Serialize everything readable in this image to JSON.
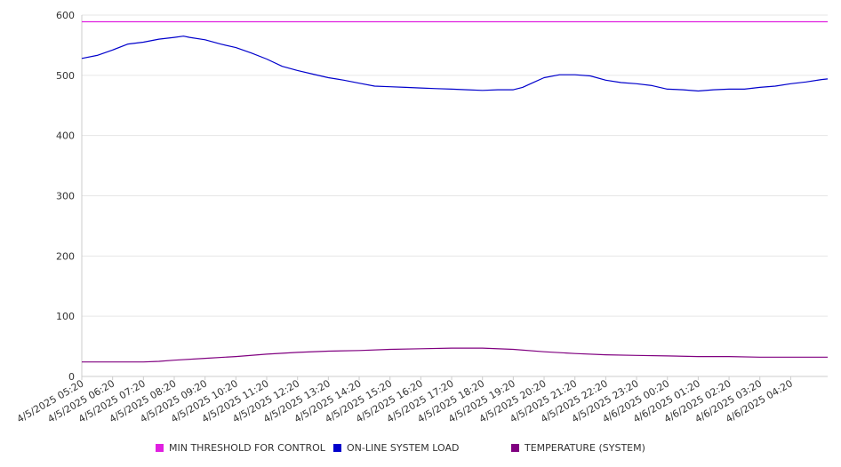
{
  "chart_data": {
    "type": "line",
    "ylim": [
      0,
      600
    ],
    "yticks": [
      0,
      100,
      200,
      300,
      400,
      500,
      600
    ],
    "x_tick_labels": [
      "4/5/2025 05:20",
      "4/5/2025 06:20",
      "4/5/2025 07:20",
      "4/5/2025 08:20",
      "4/5/2025 09:20",
      "4/5/2025 10:20",
      "4/5/2025 11:20",
      "4/5/2025 12:20",
      "4/5/2025 13:20",
      "4/5/2025 14:20",
      "4/5/2025 15:20",
      "4/5/2025 16:20",
      "4/5/2025 17:20",
      "4/5/2025 18:20",
      "4/5/2025 19:20",
      "4/5/2025 20:20",
      "4/5/2025 21:20",
      "4/5/2025 22:20",
      "4/5/2025 23:20",
      "4/6/2025 00:20",
      "4/6/2025 01:20",
      "4/6/2025 02:20",
      "4/6/2025 03:20",
      "4/6/2025 04:20"
    ],
    "grid": true,
    "legend_position": "bottom",
    "series": [
      {
        "name": "MIN THRESHOLD FOR CONTROL",
        "color": "#e020e0",
        "x": [
          0,
          24.2
        ],
        "values": [
          589,
          589
        ]
      },
      {
        "name": "ON-LINE SYSTEM LOAD",
        "color": "#0000cc",
        "x": [
          0,
          0.5,
          1,
          1.5,
          2,
          2.5,
          3,
          3.3,
          3.5,
          4,
          4.5,
          5,
          5.5,
          6,
          6.5,
          7,
          7.5,
          8,
          8.5,
          9,
          9.5,
          10,
          10.5,
          11,
          11.5,
          12,
          12.5,
          13,
          13.5,
          14,
          14.3,
          14.6,
          15,
          15.5,
          16,
          16.5,
          17,
          17.5,
          18,
          18.5,
          19,
          19.5,
          20,
          20.5,
          21,
          21.5,
          22,
          22.5,
          23,
          23.5,
          24,
          24.2
        ],
        "values": [
          528,
          533,
          542,
          552,
          555,
          560,
          563,
          565,
          563,
          559,
          552,
          546,
          537,
          527,
          515,
          508,
          502,
          496,
          492,
          487,
          482,
          481,
          480,
          479,
          478,
          477,
          476,
          475,
          476,
          476,
          480,
          487,
          496,
          501,
          501,
          499,
          492,
          488,
          486,
          483,
          477,
          476,
          474,
          476,
          477,
          477,
          480,
          482,
          486,
          489,
          493,
          494
        ]
      },
      {
        "name": "TEMPERATURE (SYSTEM)",
        "color": "#800080",
        "x": [
          0,
          1,
          2,
          2.5,
          3,
          4,
          5,
          6,
          7,
          8,
          9,
          10,
          11,
          12,
          13,
          14,
          15,
          16,
          17,
          18,
          19,
          20,
          21,
          22,
          23,
          24,
          24.2
        ],
        "values": [
          24,
          24,
          24,
          25,
          27,
          30,
          33,
          37,
          40,
          42,
          43,
          45,
          46,
          47,
          47,
          45,
          41,
          38,
          36,
          35,
          34,
          33,
          33,
          32,
          32,
          32,
          32
        ]
      }
    ]
  }
}
